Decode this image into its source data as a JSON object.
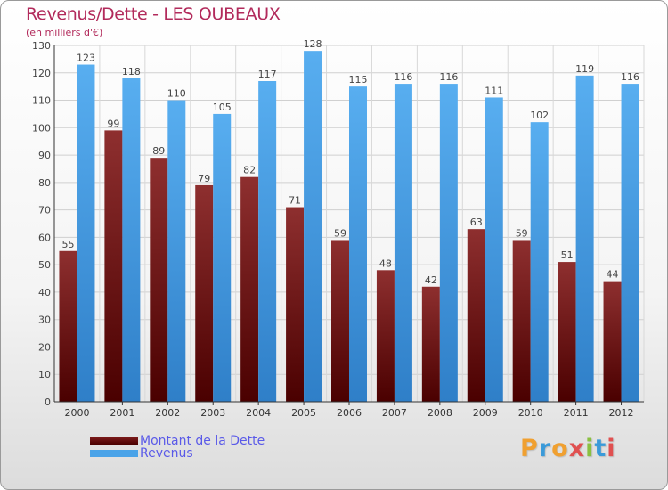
{
  "title": "Revenus/Dette - LES OUBEAUX",
  "subtitle": "(en milliers d'€)",
  "logo": {
    "text": "Proxiti",
    "colors": [
      "#f0a030",
      "#3a9ad9",
      "#f0a030",
      "#e05050",
      "#8ac040",
      "#3a9ad9",
      "#e05050"
    ]
  },
  "legend": [
    {
      "label": "Montant de la Dette",
      "color": "#6b1010"
    },
    {
      "label": "Revenus",
      "color": "#4aa3e8"
    }
  ],
  "chart_data": {
    "type": "bar",
    "title": "Revenus/Dette - LES OUBEAUX",
    "subtitle": "(en milliers d'€)",
    "categories": [
      "2000",
      "2001",
      "2002",
      "2003",
      "2004",
      "2005",
      "2006",
      "2007",
      "2008",
      "2009",
      "2010",
      "2011",
      "2012"
    ],
    "series": [
      {
        "name": "Montant de la Dette",
        "color": "#7a1a1a",
        "values": [
          55,
          99,
          89,
          79,
          82,
          71,
          59,
          48,
          42,
          63,
          59,
          51,
          44
        ]
      },
      {
        "name": "Revenus",
        "color": "#4aa3e8",
        "values": [
          123,
          118,
          110,
          105,
          117,
          128,
          115,
          116,
          116,
          111,
          102,
          119,
          116
        ]
      }
    ],
    "ylim": [
      0,
      130
    ],
    "yticks": [
      0,
      10,
      20,
      30,
      40,
      50,
      60,
      70,
      80,
      90,
      100,
      110,
      120,
      130
    ],
    "grid": true,
    "legend_position": "bottom-left"
  }
}
